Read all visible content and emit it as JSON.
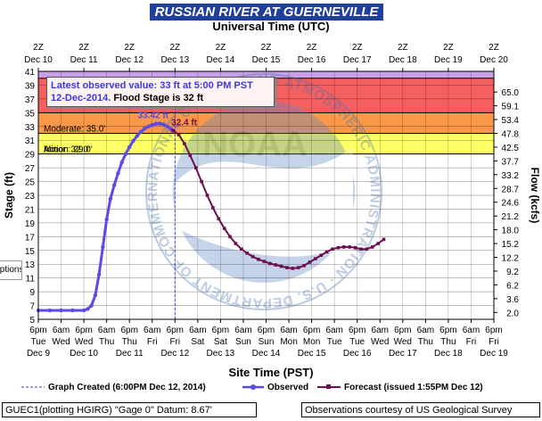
{
  "page": {
    "title": "RUSSIAN RIVER AT GUERNEVILLE",
    "top_axis_title": "Universal Time (UTC)",
    "bottom_axis_title": "Site Time (PST)",
    "left_axis_title": "Stage (ft)",
    "right_axis_title": "Flow (kcfs)",
    "latest_line1": "Latest observed value: 33 ft at 5:00 PM PST",
    "latest_line2_date": "12-Dec-2014.",
    "latest_line2_rest": " Flood Stage is 32 ft",
    "options_label": "Options",
    "legend": {
      "created": "Graph Created (6:00PM Dec 12, 2014)",
      "observed": "Observed",
      "forecast": "Forecast (issued 1:55PM Dec 12)"
    },
    "footer_left": "GUEC1(plotting HGIRG) \"Gage 0\" Datum: 8.67'",
    "footer_right": "Observations courtesy of US Geological Survey",
    "watermark_text": "NATIONAL OCEANIC AND ATMOSPHERIC ADMINISTRATION · U.S. DEPARTMENT OF COMMERCE",
    "watermark_center": "NOAA"
  },
  "colors": {
    "title_bg": "#1f3f9a",
    "observed": "#5a4ae8",
    "forecast": "#6b0f4d",
    "major": "#c8a0e8",
    "moderate_top": "#f46060",
    "moderate": "#f89848",
    "minor": "#fbc36c",
    "action": "#ffff66"
  },
  "chart_data": {
    "type": "line",
    "ylim": [
      5,
      41
    ],
    "y_ticks": [
      "5",
      "7",
      "9",
      "11",
      "13",
      "15",
      "17",
      "19",
      "21",
      "23",
      "25",
      "27",
      "29",
      "31",
      "33",
      "35",
      "37",
      "39",
      "41"
    ],
    "flow_ticks": [
      {
        "stage": 6,
        "label": "2.0"
      },
      {
        "stage": 8,
        "label": "3.6"
      },
      {
        "stage": 10,
        "label": "6.2"
      },
      {
        "stage": 12,
        "label": "9.2"
      },
      {
        "stage": 14,
        "label": "12.2"
      },
      {
        "stage": 16,
        "label": "15.2"
      },
      {
        "stage": 18,
        "label": "18.0"
      },
      {
        "stage": 20,
        "label": "21.2"
      },
      {
        "stage": 22,
        "label": "24.6"
      },
      {
        "stage": 24,
        "label": "28.7"
      },
      {
        "stage": 26,
        "label": "33.2"
      },
      {
        "stage": 28,
        "label": "37.7"
      },
      {
        "stage": 30,
        "label": "42.5"
      },
      {
        "stage": 32,
        "label": "47.8"
      },
      {
        "stage": 34,
        "label": "53.4"
      },
      {
        "stage": 36,
        "label": "59.1"
      },
      {
        "stage": 38,
        "label": "65.0"
      }
    ],
    "x_range_hours": [
      0,
      240
    ],
    "bottom_ticks": [
      {
        "h": 0,
        "l1": "6pm",
        "l2": "Tue",
        "l3": "Dec 9"
      },
      {
        "h": 12,
        "l1": "6am",
        "l2": "Wed",
        "l3": ""
      },
      {
        "h": 24,
        "l1": "6pm",
        "l2": "Wed",
        "l3": "Dec 10"
      },
      {
        "h": 36,
        "l1": "6am",
        "l2": "Thu",
        "l3": ""
      },
      {
        "h": 48,
        "l1": "6pm",
        "l2": "Thu",
        "l3": "Dec 11"
      },
      {
        "h": 60,
        "l1": "6am",
        "l2": "Fri",
        "l3": ""
      },
      {
        "h": 72,
        "l1": "6pm",
        "l2": "Fri",
        "l3": "Dec 12"
      },
      {
        "h": 84,
        "l1": "6am",
        "l2": "Sat",
        "l3": ""
      },
      {
        "h": 96,
        "l1": "6pm",
        "l2": "Sat",
        "l3": "Dec 13"
      },
      {
        "h": 108,
        "l1": "6am",
        "l2": "Sun",
        "l3": ""
      },
      {
        "h": 120,
        "l1": "6pm",
        "l2": "Sun",
        "l3": "Dec 14"
      },
      {
        "h": 132,
        "l1": "6am",
        "l2": "Mon",
        "l3": ""
      },
      {
        "h": 144,
        "l1": "6pm",
        "l2": "Mon",
        "l3": "Dec 15"
      },
      {
        "h": 156,
        "l1": "6am",
        "l2": "Tue",
        "l3": ""
      },
      {
        "h": 168,
        "l1": "6pm",
        "l2": "Tue",
        "l3": "Dec 16"
      },
      {
        "h": 180,
        "l1": "6am",
        "l2": "Wed",
        "l3": ""
      },
      {
        "h": 192,
        "l1": "6pm",
        "l2": "Wed",
        "l3": "Dec 17"
      },
      {
        "h": 204,
        "l1": "6am",
        "l2": "Thu",
        "l3": ""
      },
      {
        "h": 216,
        "l1": "6pm",
        "l2": "Thu",
        "l3": "Dec 18"
      },
      {
        "h": 228,
        "l1": "6am",
        "l2": "Fri",
        "l3": ""
      },
      {
        "h": 240,
        "l1": "6pm",
        "l2": "Fri",
        "l3": "Dec 19"
      }
    ],
    "top_ticks": [
      {
        "h": 0,
        "l1": "2Z",
        "l2": "Dec 10"
      },
      {
        "h": 24,
        "l1": "2Z",
        "l2": "Dec 11"
      },
      {
        "h": 48,
        "l1": "2Z",
        "l2": "Dec 12"
      },
      {
        "h": 72,
        "l1": "2Z",
        "l2": "Dec 13"
      },
      {
        "h": 96,
        "l1": "2Z",
        "l2": "Dec 14"
      },
      {
        "h": 120,
        "l1": "2Z",
        "l2": "Dec 15"
      },
      {
        "h": 144,
        "l1": "2Z",
        "l2": "Dec 16"
      },
      {
        "h": 168,
        "l1": "2Z",
        "l2": "Dec 17"
      },
      {
        "h": 192,
        "l1": "2Z",
        "l2": "Dec 18"
      },
      {
        "h": 216,
        "l1": "2Z",
        "l2": "Dec 19"
      },
      {
        "h": 240,
        "l1": "2Z",
        "l2": "Dec 20"
      }
    ],
    "flood_categories": [
      {
        "name": "Major",
        "label": "",
        "lower": 40,
        "upper": 41,
        "color": "#c8a0e8"
      },
      {
        "name": "MajorBand",
        "label": "",
        "lower": 35,
        "upper": 40,
        "color": "#f46060"
      },
      {
        "name": "Moderate",
        "label": "Moderate: 35.0'",
        "lower": 32,
        "upper": 35,
        "color": "#f89848"
      },
      {
        "name": "Minor",
        "label": "Minor: 32.0'",
        "lower": 29,
        "upper": 32,
        "color": "#ffff66"
      },
      {
        "name": "Action",
        "label": "Action: 29.0'",
        "lower": 29,
        "upper": 29,
        "color": "#ffff66"
      }
    ],
    "created_marker_h": 72,
    "peak_annotations": [
      {
        "label": "33.42 ft",
        "h": 68,
        "y": 33.42,
        "series": "observed"
      },
      {
        "label": "32.4 ft",
        "h": 74,
        "y": 32.4,
        "series": "forecast"
      }
    ],
    "series": [
      {
        "name": "Observed",
        "points": [
          [
            0,
            6.3
          ],
          [
            6,
            6.3
          ],
          [
            12,
            6.3
          ],
          [
            18,
            6.3
          ],
          [
            24,
            6.3
          ],
          [
            26,
            6.5
          ],
          [
            28,
            7.0
          ],
          [
            30,
            8.5
          ],
          [
            32,
            11.5
          ],
          [
            34,
            15.5
          ],
          [
            36,
            19.5
          ],
          [
            38,
            22.5
          ],
          [
            40,
            24.5
          ],
          [
            42,
            26.2
          ],
          [
            44,
            27.8
          ],
          [
            46,
            29.0
          ],
          [
            48,
            30.0
          ],
          [
            50,
            30.9
          ],
          [
            52,
            31.6
          ],
          [
            54,
            32.2
          ],
          [
            56,
            32.7
          ],
          [
            58,
            33.0
          ],
          [
            60,
            33.2
          ],
          [
            62,
            33.4
          ],
          [
            64,
            33.42
          ],
          [
            66,
            33.3
          ],
          [
            68,
            33.0
          ],
          [
            70,
            32.6
          ],
          [
            71,
            32.4
          ]
        ]
      },
      {
        "name": "Forecast",
        "points": [
          [
            71,
            32.4
          ],
          [
            74,
            31.8
          ],
          [
            77,
            30.5
          ],
          [
            80,
            28.8
          ],
          [
            83,
            27.0
          ],
          [
            86,
            25.0
          ],
          [
            89,
            23.0
          ],
          [
            92,
            21.2
          ],
          [
            95,
            19.6
          ],
          [
            98,
            18.2
          ],
          [
            101,
            17.0
          ],
          [
            104,
            16.0
          ],
          [
            107,
            15.2
          ],
          [
            110,
            14.6
          ],
          [
            113,
            14.1
          ],
          [
            116,
            13.7
          ],
          [
            119,
            13.4
          ],
          [
            122,
            13.1
          ],
          [
            125,
            12.9
          ],
          [
            128,
            12.7
          ],
          [
            131,
            12.5
          ],
          [
            134,
            12.4
          ],
          [
            137,
            12.5
          ],
          [
            140,
            12.8
          ],
          [
            143,
            13.3
          ],
          [
            146,
            13.8
          ],
          [
            149,
            14.3
          ],
          [
            152,
            14.8
          ],
          [
            155,
            15.2
          ],
          [
            158,
            15.4
          ],
          [
            161,
            15.5
          ],
          [
            164,
            15.5
          ],
          [
            167,
            15.4
          ],
          [
            170,
            15.2
          ],
          [
            173,
            15.2
          ],
          [
            176,
            15.5
          ],
          [
            179,
            16.0
          ],
          [
            182,
            16.6
          ]
        ]
      }
    ]
  }
}
